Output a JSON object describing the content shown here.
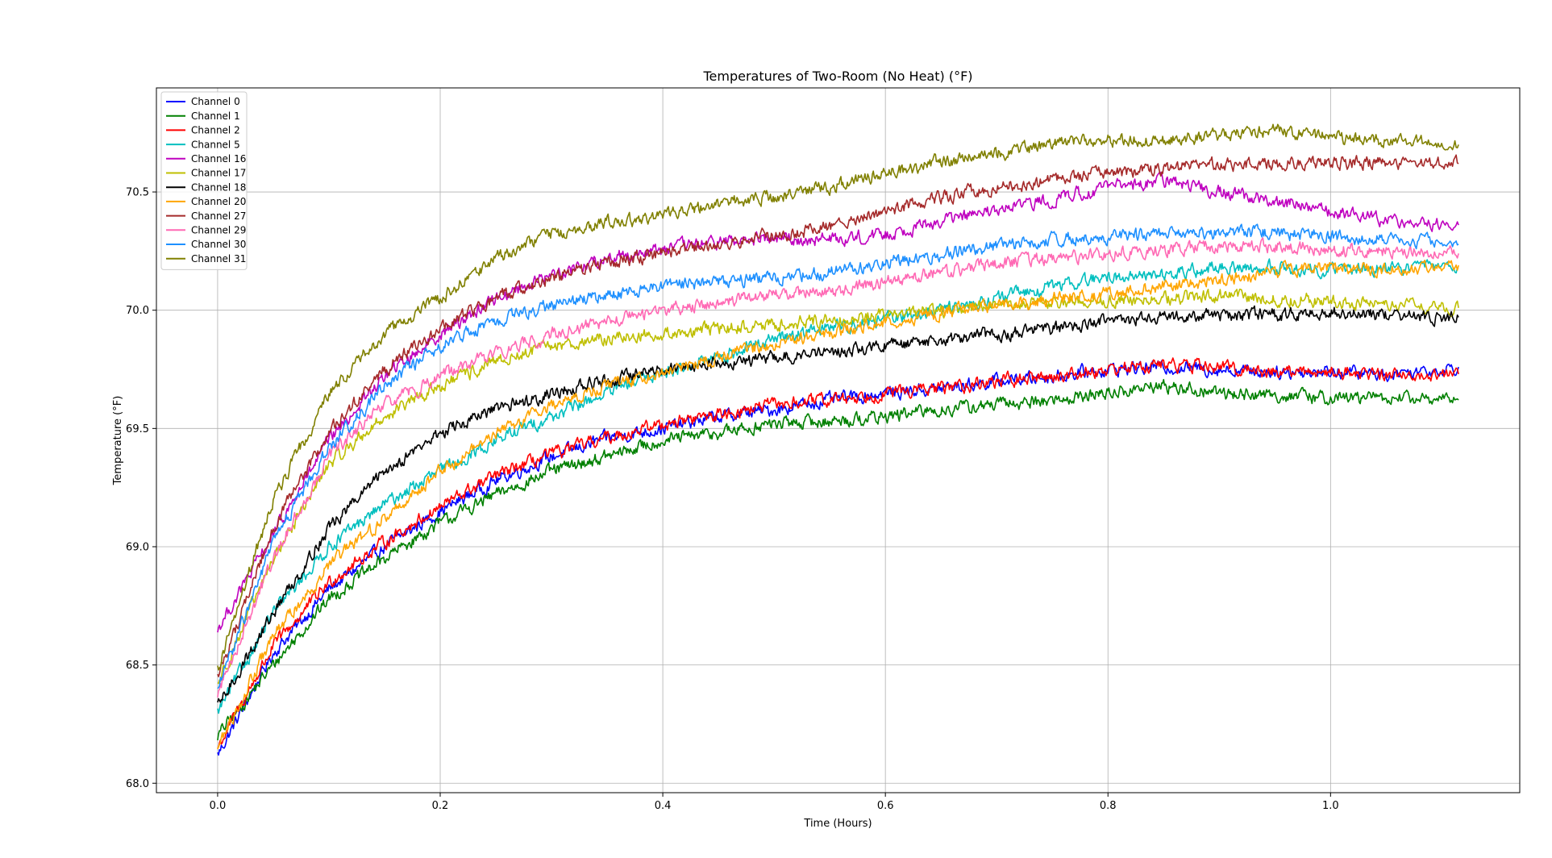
{
  "chart_data": {
    "type": "line",
    "title": "Temperatures of Two-Room (No Heat) (°F)",
    "xlabel": "Time (Hours)",
    "ylabel": "Temperature (°F)",
    "xlim": [
      -0.055,
      1.17
    ],
    "ylim": [
      67.96,
      70.94
    ],
    "xticks": [
      0.0,
      0.2,
      0.4,
      0.6,
      0.8,
      1.0
    ],
    "xtick_labels": [
      "0.0",
      "0.2",
      "0.4",
      "0.6",
      "0.8",
      "1.0"
    ],
    "yticks": [
      68.0,
      68.5,
      69.0,
      69.5,
      70.0,
      70.5
    ],
    "ytick_labels": [
      "68.0",
      "68.5",
      "69.0",
      "69.5",
      "70.0",
      "70.5"
    ],
    "grid": true,
    "legend_position": "top-left",
    "x": [
      0.0,
      0.05,
      0.1,
      0.15,
      0.2,
      0.25,
      0.3,
      0.35,
      0.4,
      0.45,
      0.5,
      0.55,
      0.6,
      0.65,
      0.7,
      0.75,
      0.8,
      0.85,
      0.9,
      0.95,
      1.0,
      1.05,
      1.115
    ],
    "series": [
      {
        "name": "Channel 0",
        "color": "#0000ff",
        "values": [
          68.12,
          68.55,
          68.82,
          69.0,
          69.15,
          69.28,
          69.38,
          69.46,
          69.5,
          69.55,
          69.58,
          69.62,
          69.65,
          69.67,
          69.7,
          69.72,
          69.75,
          69.76,
          69.75,
          69.74,
          69.74,
          69.73,
          69.76
        ]
      },
      {
        "name": "Channel 1",
        "color": "#008000",
        "values": [
          68.2,
          68.5,
          68.78,
          68.95,
          69.1,
          69.22,
          69.32,
          69.38,
          69.45,
          69.48,
          69.52,
          69.53,
          69.55,
          69.58,
          69.6,
          69.62,
          69.65,
          69.68,
          69.65,
          69.64,
          69.63,
          69.63,
          69.62
        ]
      },
      {
        "name": "Channel 2",
        "color": "#ff0000",
        "values": [
          68.15,
          68.58,
          68.85,
          69.02,
          69.17,
          69.3,
          69.39,
          69.46,
          69.52,
          69.56,
          69.6,
          69.62,
          69.65,
          69.67,
          69.7,
          69.72,
          69.75,
          69.77,
          69.76,
          69.74,
          69.74,
          69.73,
          69.73
        ]
      },
      {
        "name": "Channel 5",
        "color": "#00bfbf",
        "values": [
          68.3,
          68.72,
          69.0,
          69.18,
          69.32,
          69.45,
          69.55,
          69.65,
          69.74,
          69.8,
          69.88,
          69.93,
          69.96,
          70.0,
          70.05,
          70.1,
          70.14,
          70.15,
          70.18,
          70.18,
          70.17,
          70.18,
          70.18
        ]
      },
      {
        "name": "Channel 16",
        "color": "#bf00bf",
        "values": [
          68.65,
          69.05,
          69.45,
          69.72,
          69.9,
          70.05,
          70.15,
          70.22,
          70.26,
          70.29,
          70.3,
          70.3,
          70.32,
          70.38,
          70.42,
          70.47,
          70.52,
          70.55,
          70.5,
          70.46,
          70.42,
          70.38,
          70.36
        ]
      },
      {
        "name": "Channel 17",
        "color": "#bfbf00",
        "values": [
          68.42,
          68.95,
          69.35,
          69.55,
          69.68,
          69.78,
          69.85,
          69.88,
          69.9,
          69.92,
          69.94,
          69.96,
          69.98,
          70.0,
          70.02,
          70.03,
          70.04,
          70.05,
          70.06,
          70.05,
          70.04,
          70.02,
          70.01
        ]
      },
      {
        "name": "Channel 18",
        "color": "#000000",
        "values": [
          68.32,
          68.72,
          69.08,
          69.32,
          69.48,
          69.58,
          69.65,
          69.7,
          69.75,
          69.78,
          69.8,
          69.82,
          69.85,
          69.87,
          69.9,
          69.92,
          69.95,
          69.97,
          69.98,
          69.98,
          69.99,
          69.98,
          69.97
        ]
      },
      {
        "name": "Channel 20",
        "color": "#ffa500",
        "values": [
          68.15,
          68.62,
          68.92,
          69.12,
          69.32,
          69.48,
          69.6,
          69.68,
          69.74,
          69.8,
          69.86,
          69.9,
          69.95,
          69.99,
          70.02,
          70.05,
          70.07,
          70.1,
          70.13,
          70.16,
          70.18,
          70.17,
          70.19
        ]
      },
      {
        "name": "Channel 27",
        "color": "#a52a2a",
        "values": [
          68.45,
          69.08,
          69.48,
          69.75,
          69.92,
          70.05,
          70.14,
          70.2,
          70.24,
          70.28,
          70.32,
          70.35,
          70.42,
          70.48,
          70.52,
          70.55,
          70.58,
          70.6,
          70.62,
          70.62,
          70.63,
          70.62,
          70.62
        ]
      },
      {
        "name": "Channel 29",
        "color": "#ff69b4",
        "values": [
          68.38,
          68.95,
          69.38,
          69.6,
          69.72,
          69.82,
          69.9,
          69.95,
          70.0,
          70.03,
          70.06,
          70.08,
          70.12,
          70.16,
          70.2,
          70.22,
          70.24,
          70.26,
          70.27,
          70.27,
          70.26,
          70.25,
          70.24
        ]
      },
      {
        "name": "Channel 30",
        "color": "#1e90ff",
        "values": [
          68.4,
          69.02,
          69.42,
          69.68,
          69.85,
          69.95,
          70.02,
          70.06,
          70.1,
          70.12,
          70.14,
          70.16,
          70.2,
          70.24,
          70.27,
          70.3,
          70.31,
          70.32,
          70.33,
          70.33,
          70.31,
          70.3,
          70.28
        ]
      },
      {
        "name": "Channel 31",
        "color": "#808000",
        "values": [
          68.48,
          69.2,
          69.65,
          69.9,
          70.05,
          70.22,
          70.32,
          70.37,
          70.4,
          70.45,
          70.48,
          70.52,
          70.58,
          70.63,
          70.66,
          70.7,
          70.72,
          70.72,
          70.74,
          70.76,
          70.73,
          70.72,
          70.7
        ]
      }
    ]
  }
}
